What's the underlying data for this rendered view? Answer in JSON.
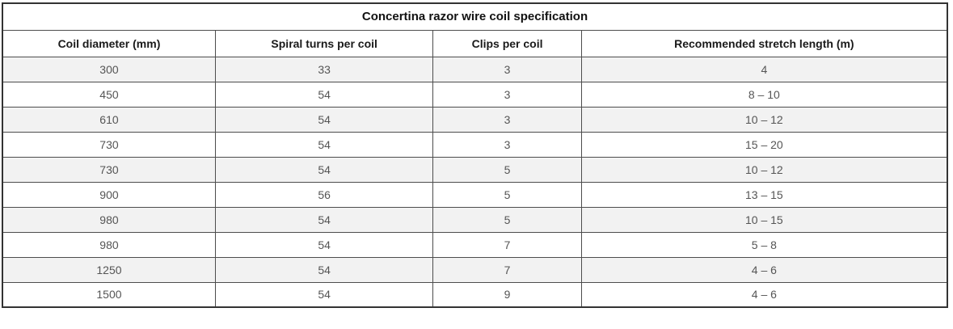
{
  "table": {
    "title": "Concertina razor wire coil specification",
    "columns": [
      "Coil diameter (mm)",
      "Spiral turns per coil",
      "Clips per coil",
      "Recommended stretch length (m)"
    ],
    "column_keys": [
      "coil-diameter",
      "spiral-turns",
      "clips-per-coil",
      "stretch-length"
    ],
    "rows": [
      [
        "300",
        "33",
        "3",
        "4"
      ],
      [
        "450",
        "54",
        "3",
        "8 – 10"
      ],
      [
        "610",
        "54",
        "3",
        "10 – 12"
      ],
      [
        "730",
        "54",
        "3",
        "15 – 20"
      ],
      [
        "730",
        "54",
        "5",
        "10 – 12"
      ],
      [
        "900",
        "56",
        "5",
        "13 – 15"
      ],
      [
        "980",
        "54",
        "5",
        "10 – 15"
      ],
      [
        "980",
        "54",
        "7",
        "5 – 8"
      ],
      [
        "1250",
        "54",
        "7",
        "4 – 6"
      ],
      [
        "1500",
        "54",
        "9",
        "4 – 6"
      ]
    ],
    "colors": {
      "zebra_row": "#f2f2f2",
      "outer_border": "#333333",
      "inner_border": "#4d4d4d",
      "data_text": "#555555",
      "header_text": "#1a1a1a"
    }
  }
}
